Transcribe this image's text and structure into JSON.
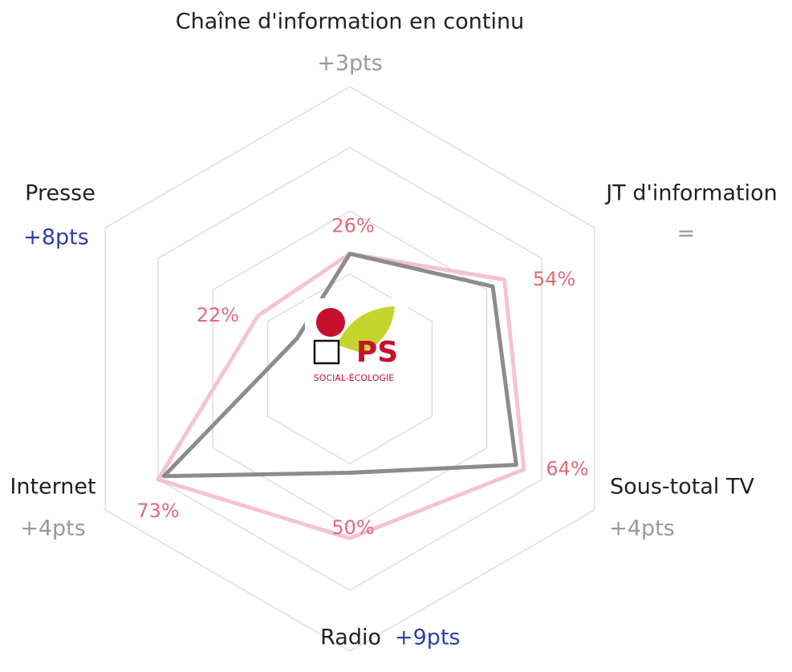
{
  "chart_data": {
    "type": "radar",
    "categories": [
      "Chaîne d'information en continu",
      "JT d'information",
      "Sous-total TV",
      "Radio",
      "Internet",
      "Presse"
    ],
    "changes": [
      "+3pts",
      "=",
      "+4pts",
      "+9pts",
      "+4pts",
      "+8pts"
    ],
    "change_colors": [
      "#999999",
      "#999999",
      "#999999",
      "#2f3fa8",
      "#999999",
      "#2f3fa8"
    ],
    "series": [
      {
        "color": "#f4c4cf",
        "values": [
          26,
          54,
          64,
          50,
          73,
          22
        ],
        "value_labels": [
          "26%",
          "54%",
          "64%",
          "50%",
          "73%",
          "22%"
        ],
        "label_color": "#e06a78"
      },
      {
        "color": "#8c8c8c",
        "values": [
          26,
          48,
          60,
          21,
          70,
          2
        ]
      }
    ],
    "rlim": [
      -25,
      100
    ],
    "rticks": [
      17,
      45,
      73,
      100
    ],
    "grid_color": "#d3d8f2",
    "logo": {
      "text": "PS",
      "subtitle": "SOCIAL-ÉCOLOGIE"
    }
  }
}
